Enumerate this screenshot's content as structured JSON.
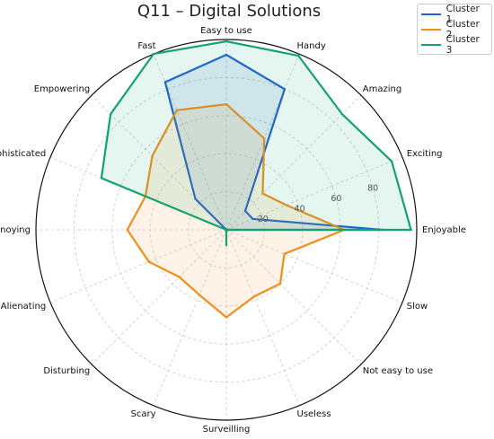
{
  "title": "Q11 – Digital Solutions",
  "chart_data": {
    "type": "radar",
    "title": "Q11 – Digital Solutions",
    "axes": [
      "Easy to use",
      "Handy",
      "Amazing",
      "Exciting",
      "Enjoyable",
      "Slow",
      "Not easy to use",
      "Useless",
      "Surveilling",
      "Scary",
      "Disturbing",
      "Alienating",
      "Annoying",
      "Sophisticated",
      "Empowering",
      "Fast"
    ],
    "rlim": [
      0,
      100
    ],
    "rticks": [
      20,
      40,
      60,
      80
    ],
    "rtick_labels": [
      "20",
      "40",
      "60",
      "80"
    ],
    "grid": true,
    "legend_position": "top-right",
    "series": [
      {
        "name": "Cluster 1",
        "color": "#1f5fd6",
        "values": [
          92,
          80,
          14,
          15,
          82,
          0,
          0,
          0,
          0,
          0,
          0,
          0,
          0,
          0,
          23,
          84
        ]
      },
      {
        "name": "Cluster 2",
        "color": "#f28e1c",
        "values": [
          66,
          52,
          27,
          34,
          62,
          33,
          40,
          38,
          46,
          37,
          35,
          44,
          52,
          46,
          55,
          68
        ]
      },
      {
        "name": "Cluster 3",
        "color": "#11a36e",
        "values": [
          99,
          99,
          86,
          94,
          97,
          0,
          0,
          0,
          8,
          0,
          0,
          0,
          0,
          71,
          86,
          100
        ]
      }
    ]
  }
}
